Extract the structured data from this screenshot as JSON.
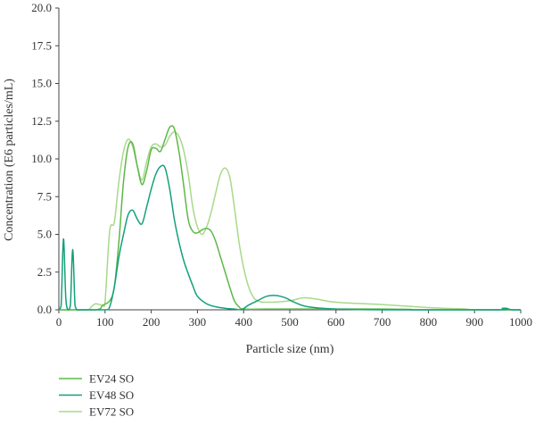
{
  "chart_data": {
    "type": "line",
    "title": "",
    "xlabel": "Particle size (nm)",
    "ylabel": "Concentration (E6 particles/mL)",
    "xlim": [
      0,
      1000
    ],
    "ylim": [
      0,
      20
    ],
    "x_ticks": [
      0,
      100,
      200,
      300,
      400,
      500,
      600,
      700,
      800,
      900,
      1000
    ],
    "y_ticks": [
      "0.0",
      "2.5",
      "5.0",
      "7.5",
      "10.0",
      "12.5",
      "15.0",
      "17.5",
      "20.0"
    ],
    "grid": false,
    "legend_position": "bottom-left",
    "series": [
      {
        "name": "EV24 SO",
        "color": "#5cb848",
        "x": [
          0,
          80,
          95,
          110,
          120,
          130,
          140,
          150,
          160,
          170,
          180,
          190,
          200,
          210,
          220,
          230,
          240,
          250,
          260,
          270,
          280,
          290,
          300,
          310,
          320,
          330,
          340,
          350,
          360,
          370,
          380,
          390,
          400,
          450,
          500,
          600,
          700,
          760,
          780,
          1000
        ],
        "y": [
          0,
          0,
          0.3,
          0.6,
          1.5,
          4.5,
          8.5,
          10.8,
          11.0,
          9.5,
          8.3,
          9.2,
          10.6,
          10.7,
          10.5,
          11.3,
          12.1,
          12.0,
          10.5,
          8.3,
          6.0,
          5.2,
          5.1,
          5.3,
          5.4,
          5.2,
          4.5,
          3.5,
          2.5,
          1.5,
          0.6,
          0.2,
          0.05,
          0.05,
          0.05,
          0.05,
          0.05,
          0.03,
          0,
          0
        ]
      },
      {
        "name": "EV48 SO",
        "color": "#14a07a",
        "x": [
          0,
          5,
          10,
          15,
          20,
          25,
          30,
          35,
          40,
          45,
          100,
          110,
          120,
          130,
          140,
          150,
          160,
          170,
          180,
          190,
          200,
          210,
          220,
          230,
          240,
          250,
          260,
          270,
          280,
          290,
          300,
          320,
          340,
          360,
          380,
          395,
          410,
          430,
          450,
          470,
          490,
          510,
          540,
          600,
          700,
          950,
          960,
          970,
          980,
          1000
        ],
        "y": [
          0,
          0.3,
          4.7,
          0.8,
          0,
          0.3,
          4.0,
          0.3,
          0,
          0,
          0,
          0.2,
          1.5,
          3.5,
          5.0,
          6.3,
          6.6,
          6.0,
          5.7,
          6.8,
          8.0,
          9.0,
          9.5,
          9.4,
          8.0,
          6.0,
          4.5,
          3.3,
          2.4,
          1.6,
          0.9,
          0.4,
          0.2,
          0.1,
          0.05,
          0,
          0.3,
          0.6,
          0.9,
          0.95,
          0.8,
          0.5,
          0.2,
          0.05,
          0,
          0,
          0.1,
          0.1,
          0,
          0
        ]
      },
      {
        "name": "EV72 SO",
        "color": "#a8d98a",
        "x": [
          0,
          60,
          70,
          80,
          95,
          100,
          110,
          120,
          130,
          140,
          150,
          160,
          170,
          180,
          190,
          200,
          210,
          220,
          230,
          240,
          250,
          260,
          270,
          280,
          290,
          300,
          310,
          320,
          330,
          340,
          350,
          360,
          370,
          380,
          390,
          400,
          410,
          420,
          430,
          450,
          500,
          530,
          560,
          600,
          700,
          800,
          880,
          900,
          1000
        ],
        "y": [
          0,
          0,
          0.2,
          0.4,
          0.3,
          0.5,
          5.2,
          5.8,
          8.5,
          10.5,
          11.3,
          10.8,
          9.5,
          8.6,
          9.8,
          10.8,
          11.0,
          10.8,
          10.9,
          11.5,
          11.8,
          11.5,
          10.6,
          9.0,
          6.8,
          5.5,
          5.0,
          5.5,
          6.5,
          7.8,
          9.0,
          9.4,
          8.8,
          6.8,
          4.5,
          2.8,
          1.6,
          0.9,
          0.6,
          0.5,
          0.6,
          0.8,
          0.7,
          0.5,
          0.35,
          0.15,
          0.05,
          0,
          0
        ]
      }
    ]
  }
}
